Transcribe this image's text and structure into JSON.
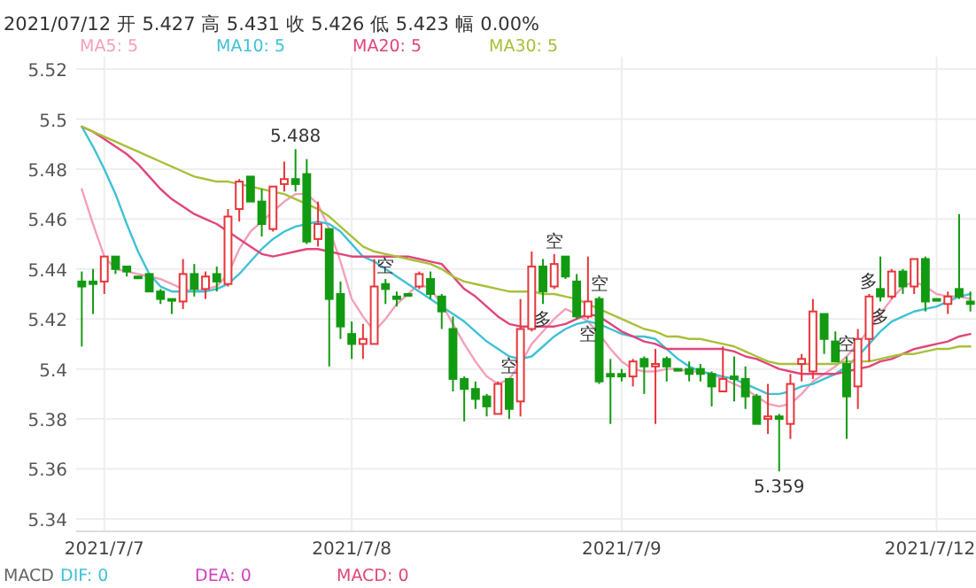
{
  "chart_data": {
    "type": "candlestick",
    "title": "2021/07/12 开 5.427 高 5.431 收 5.426 低 5.423 幅 0.00%",
    "categories": [
      null,
      null,
      "2021/7/7",
      null,
      null,
      null,
      null,
      null,
      null,
      null,
      null,
      null,
      null,
      null,
      null,
      null,
      null,
      null,
      null,
      null,
      null,
      null,
      null,
      null,
      "2021/7/8",
      null,
      null,
      null,
      null,
      null,
      null,
      null,
      null,
      null,
      null,
      null,
      null,
      null,
      null,
      null,
      null,
      null,
      null,
      null,
      null,
      null,
      null,
      null,
      "2021/7/9",
      null,
      null,
      null,
      null,
      null,
      null,
      null,
      null,
      null,
      null,
      null,
      null,
      null,
      null,
      null,
      null,
      null,
      null,
      null,
      null,
      null,
      null,
      null,
      null,
      null,
      null,
      null,
      "2021/7/12",
      null,
      null,
      null
    ],
    "ylim": [
      5.335,
      5.525
    ],
    "yticks": [
      5.34,
      5.36,
      5.38,
      5.4,
      5.42,
      5.44,
      5.46,
      5.48,
      5.5,
      5.52
    ],
    "grid": true,
    "legend": "top",
    "ohlc": [
      [
        5.435,
        5.439,
        5.409,
        5.433
      ],
      [
        5.435,
        5.44,
        5.422,
        5.434
      ],
      [
        5.435,
        5.445,
        5.43,
        5.445
      ],
      [
        5.445,
        5.445,
        5.438,
        5.44
      ],
      [
        5.441,
        5.441,
        5.437,
        5.439
      ],
      [
        5.437,
        5.437,
        5.437,
        5.437
      ],
      [
        5.438,
        5.438,
        5.431,
        5.431
      ],
      [
        5.431,
        5.432,
        5.426,
        5.428
      ],
      [
        5.428,
        5.428,
        5.422,
        5.428
      ],
      [
        5.427,
        5.444,
        5.424,
        5.438
      ],
      [
        5.438,
        5.442,
        5.429,
        5.432
      ],
      [
        5.432,
        5.439,
        5.428,
        5.437
      ],
      [
        5.438,
        5.441,
        5.431,
        5.435
      ],
      [
        5.434,
        5.464,
        5.433,
        5.461
      ],
      [
        5.464,
        5.476,
        5.459,
        5.475
      ],
      [
        5.477,
        5.477,
        5.467,
        5.467
      ],
      [
        5.467,
        5.472,
        5.453,
        5.458
      ],
      [
        5.456,
        5.473,
        5.455,
        5.473
      ],
      [
        5.474,
        5.483,
        5.471,
        5.476
      ],
      [
        5.476,
        5.488,
        5.471,
        5.474
      ],
      [
        5.478,
        5.484,
        5.45,
        5.451
      ],
      [
        5.452,
        5.467,
        5.449,
        5.458
      ],
      [
        5.456,
        5.456,
        5.401,
        5.428
      ],
      [
        5.43,
        5.435,
        5.412,
        5.417
      ],
      [
        5.414,
        5.419,
        5.404,
        5.41
      ],
      [
        5.41,
        5.418,
        5.404,
        5.412
      ],
      [
        5.41,
        5.444,
        5.41,
        5.433
      ],
      [
        5.434,
        5.436,
        5.426,
        5.432
      ],
      [
        5.429,
        5.431,
        5.425,
        5.428
      ],
      [
        5.43,
        5.43,
        5.43,
        5.43
      ],
      [
        5.433,
        5.439,
        5.432,
        5.438
      ],
      [
        5.436,
        5.439,
        5.428,
        5.43
      ],
      [
        5.429,
        5.43,
        5.416,
        5.423
      ],
      [
        5.416,
        5.421,
        5.391,
        5.396
      ],
      [
        5.396,
        5.397,
        5.379,
        5.392
      ],
      [
        5.392,
        5.395,
        5.384,
        5.388
      ],
      [
        5.389,
        5.39,
        5.381,
        5.385
      ],
      [
        5.382,
        5.395,
        5.382,
        5.394
      ],
      [
        5.396,
        5.396,
        5.38,
        5.384
      ],
      [
        5.387,
        5.428,
        5.381,
        5.416
      ],
      [
        5.416,
        5.447,
        5.415,
        5.441
      ],
      [
        5.441,
        5.444,
        5.426,
        5.431
      ],
      [
        5.433,
        5.446,
        5.432,
        5.442
      ],
      [
        5.445,
        5.445,
        5.436,
        5.437
      ],
      [
        5.435,
        5.438,
        5.42,
        5.421
      ],
      [
        5.421,
        5.445,
        5.42,
        5.427
      ],
      [
        5.428,
        5.429,
        5.394,
        5.395
      ],
      [
        5.398,
        5.404,
        5.378,
        5.397
      ],
      [
        5.398,
        5.4,
        5.395,
        5.397
      ],
      [
        5.397,
        5.404,
        5.393,
        5.403
      ],
      [
        5.404,
        5.405,
        5.39,
        5.401
      ],
      [
        5.401,
        5.408,
        5.378,
        5.402
      ],
      [
        5.404,
        5.405,
        5.395,
        5.401
      ],
      [
        5.4,
        5.4,
        5.4,
        5.4
      ],
      [
        5.4,
        5.403,
        5.395,
        5.398
      ],
      [
        5.4,
        5.402,
        5.395,
        5.398
      ],
      [
        5.398,
        5.399,
        5.385,
        5.393
      ],
      [
        5.391,
        5.409,
        5.391,
        5.396
      ],
      [
        5.397,
        5.405,
        5.387,
        5.396
      ],
      [
        5.396,
        5.401,
        5.384,
        5.389
      ],
      [
        5.389,
        5.39,
        5.378,
        5.378
      ],
      [
        5.38,
        5.394,
        5.374,
        5.381
      ],
      [
        5.381,
        5.382,
        5.359,
        5.38
      ],
      [
        5.378,
        5.398,
        5.372,
        5.394
      ],
      [
        5.402,
        5.406,
        5.395,
        5.404
      ],
      [
        5.399,
        5.428,
        5.396,
        5.423
      ],
      [
        5.422,
        5.422,
        5.406,
        5.412
      ],
      [
        5.411,
        5.415,
        5.403,
        5.403
      ],
      [
        5.402,
        5.405,
        5.372,
        5.389
      ],
      [
        5.393,
        5.416,
        5.384,
        5.412
      ],
      [
        5.412,
        5.43,
        5.403,
        5.429
      ],
      [
        5.432,
        5.445,
        5.427,
        5.429
      ],
      [
        5.429,
        5.44,
        5.428,
        5.439
      ],
      [
        5.439,
        5.44,
        5.43,
        5.433
      ],
      [
        5.433,
        5.444,
        5.43,
        5.444
      ],
      [
        5.444,
        5.445,
        5.423,
        5.427
      ],
      [
        5.428,
        5.428,
        5.428,
        5.428
      ],
      [
        5.426,
        5.431,
        5.422,
        5.429
      ],
      [
        5.432,
        5.462,
        5.428,
        5.429
      ],
      [
        5.427,
        5.431,
        5.423,
        5.426
      ]
    ],
    "series": [
      {
        "name": "MA5: 5",
        "color": "#f4a0b8",
        "type": "line",
        "values": [
          5.472,
          5.458,
          5.445,
          5.44,
          5.439,
          5.438,
          5.437,
          5.436,
          5.434,
          5.432,
          5.431,
          5.432,
          5.433,
          5.438,
          5.448,
          5.455,
          5.459,
          5.463,
          5.467,
          5.47,
          5.47,
          5.466,
          5.456,
          5.443,
          5.428,
          5.421,
          5.415,
          5.42,
          5.426,
          5.43,
          5.434,
          5.432,
          5.426,
          5.418,
          5.41,
          5.403,
          5.397,
          5.394,
          5.396,
          5.402,
          5.41,
          5.415,
          5.42,
          5.424,
          5.422,
          5.419,
          5.414,
          5.408,
          5.403,
          5.4,
          5.399,
          5.399,
          5.4,
          5.4,
          5.399,
          5.399,
          5.398,
          5.396,
          5.394,
          5.392,
          5.389,
          5.386,
          5.385,
          5.386,
          5.39,
          5.395,
          5.398,
          5.401,
          5.405,
          5.41,
          5.416,
          5.422,
          5.428,
          5.433,
          5.435,
          5.433,
          5.43,
          5.429,
          5.429,
          5.428
        ]
      },
      {
        "name": "MA10: 5",
        "color": "#3fc1d6",
        "type": "line",
        "values": [
          5.497,
          5.489,
          5.48,
          5.47,
          5.458,
          5.447,
          5.438,
          5.433,
          5.431,
          5.431,
          5.431,
          5.431,
          5.432,
          5.434,
          5.438,
          5.443,
          5.448,
          5.452,
          5.455,
          5.457,
          5.458,
          5.459,
          5.458,
          5.455,
          5.45,
          5.445,
          5.443,
          5.44,
          5.437,
          5.434,
          5.431,
          5.428,
          5.425,
          5.422,
          5.419,
          5.415,
          5.411,
          5.408,
          5.405,
          5.404,
          5.405,
          5.409,
          5.413,
          5.416,
          5.418,
          5.419,
          5.418,
          5.416,
          5.414,
          5.413,
          5.413,
          5.412,
          5.408,
          5.404,
          5.401,
          5.399,
          5.398,
          5.397,
          5.396,
          5.394,
          5.392,
          5.39,
          5.39,
          5.391,
          5.393,
          5.394,
          5.396,
          5.398,
          5.401,
          5.405,
          5.41,
          5.415,
          5.419,
          5.421,
          5.423,
          5.424,
          5.425,
          5.427,
          5.429,
          5.43
        ]
      },
      {
        "name": "MA20: 5",
        "color": "#e0457b",
        "type": "line",
        "values": [
          5.497,
          5.495,
          5.492,
          5.489,
          5.486,
          5.482,
          5.477,
          5.472,
          5.468,
          5.465,
          5.462,
          5.46,
          5.458,
          5.455,
          5.452,
          5.449,
          5.446,
          5.445,
          5.446,
          5.447,
          5.448,
          5.448,
          5.447,
          5.446,
          5.445,
          5.445,
          5.445,
          5.445,
          5.445,
          5.445,
          5.444,
          5.443,
          5.442,
          5.437,
          5.432,
          5.429,
          5.425,
          5.421,
          5.418,
          5.417,
          5.417,
          5.417,
          5.417,
          5.418,
          5.42,
          5.422,
          5.421,
          5.418,
          5.415,
          5.413,
          5.411,
          5.41,
          5.408,
          5.408,
          5.408,
          5.408,
          5.408,
          5.408,
          5.407,
          5.405,
          5.404,
          5.402,
          5.4,
          5.399,
          5.398,
          5.398,
          5.398,
          5.398,
          5.399,
          5.4,
          5.401,
          5.403,
          5.404,
          5.406,
          5.408,
          5.409,
          5.41,
          5.411,
          5.413,
          5.414
        ]
      },
      {
        "name": "MA30: 5",
        "color": "#a8c03a",
        "type": "line",
        "values": [
          5.497,
          5.495,
          5.493,
          5.491,
          5.489,
          5.487,
          5.485,
          5.483,
          5.481,
          5.479,
          5.477,
          5.476,
          5.475,
          5.475,
          5.474,
          5.473,
          5.472,
          5.471,
          5.47,
          5.468,
          5.466,
          5.464,
          5.461,
          5.457,
          5.453,
          5.449,
          5.447,
          5.446,
          5.445,
          5.444,
          5.443,
          5.442,
          5.44,
          5.437,
          5.435,
          5.434,
          5.433,
          5.432,
          5.431,
          5.431,
          5.431,
          5.43,
          5.43,
          5.429,
          5.428,
          5.426,
          5.424,
          5.422,
          5.42,
          5.418,
          5.416,
          5.415,
          5.413,
          5.413,
          5.412,
          5.412,
          5.411,
          5.41,
          5.409,
          5.407,
          5.405,
          5.403,
          5.402,
          5.402,
          5.402,
          5.402,
          5.402,
          5.402,
          5.403,
          5.403,
          5.403,
          5.404,
          5.405,
          5.406,
          5.406,
          5.407,
          5.408,
          5.408,
          5.409,
          5.409
        ]
      }
    ],
    "annotations": [
      {
        "text": "5.488",
        "y": 5.488
      },
      {
        "text": "5.359",
        "y": 5.359
      },
      {
        "text": "多",
        "y": 5.426
      },
      {
        "text": "空",
        "y": 5.446
      },
      {
        "text": "空",
        "y": 5.436
      },
      {
        "text": "空",
        "y": 5.42
      },
      {
        "text": "空",
        "y": 5.429
      },
      {
        "text": "空",
        "y": 5.396
      },
      {
        "text": "空",
        "y": 5.405
      },
      {
        "text": "多",
        "y": 5.427
      },
      {
        "text": "多",
        "y": 5.43
      },
      "MACD",
      "DIF: 0",
      "DEA: 0",
      "MACD: 0"
    ]
  }
}
